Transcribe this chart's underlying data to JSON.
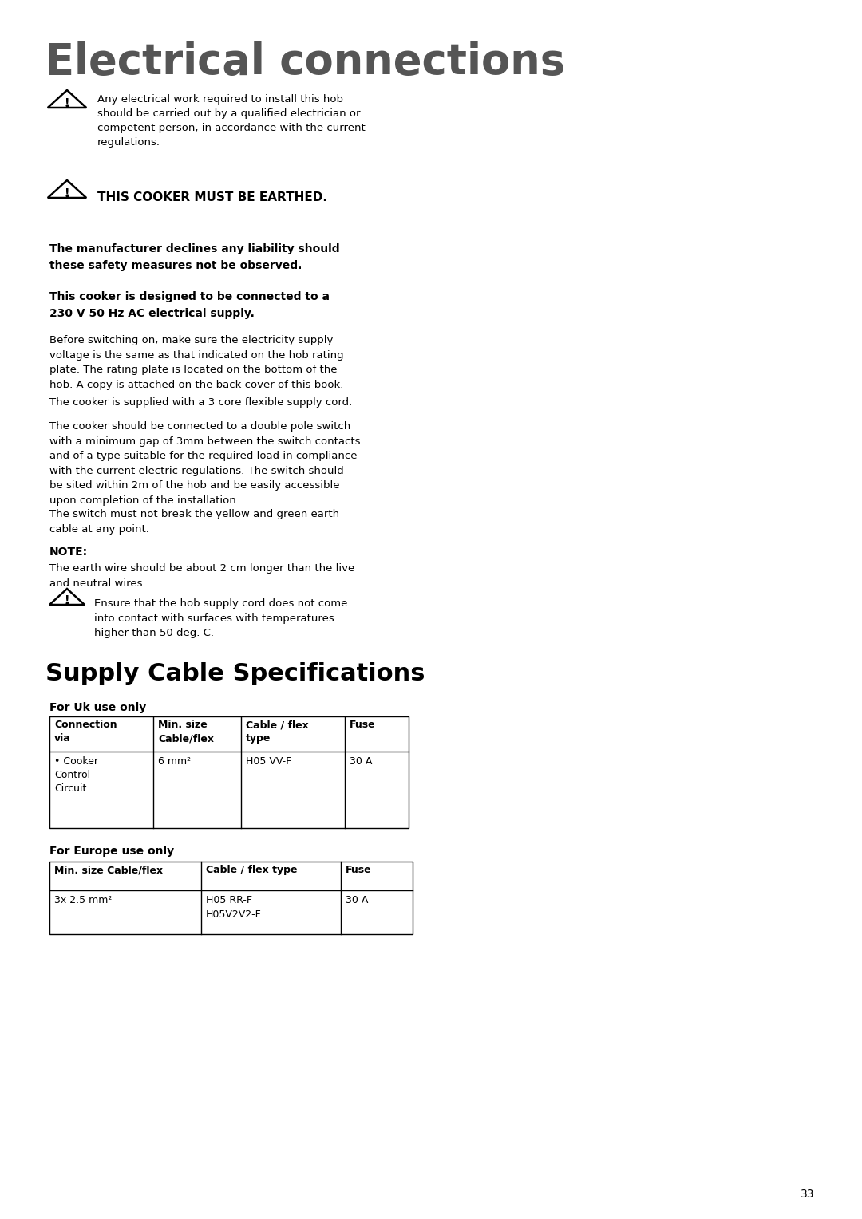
{
  "title": "Electrical connections",
  "title_color": "#555555",
  "bg_color": "#ffffff",
  "text_color": "#000000",
  "page_number": "33",
  "warning1_text": "Any electrical work required to install this hob\nshould be carried out by a qualified electrician or\ncompetent person, in accordance with the current\nregulations.",
  "warning2_text": "THIS COOKER MUST BE EARTHED.",
  "bold1_text": "The manufacturer declines any liability should\nthese safety measures not be observed.",
  "bold2_text": "This cooker is designed to be connected to a\n230 V 50 Hz AC electrical supply.",
  "para1": "Before switching on, make sure the electricity supply\nvoltage is the same as that indicated on the hob rating\nplate. The rating plate is located on the bottom of the\nhob. A copy is attached on the back cover of this book.",
  "para2": "The cooker is supplied with a 3 core flexible supply cord.",
  "para3": "The cooker should be connected to a double pole switch\nwith a minimum gap of 3mm between the switch contacts\nand of a type suitable for the required load in compliance\nwith the current electric regulations. The switch should\nbe sited within 2m of the hob and be easily accessible\nupon completion of the installation.",
  "para4": "The switch must not break the yellow and green earth\ncable at any point.",
  "note_label": "NOTE:",
  "note_text": "The earth wire should be about 2 cm longer than the live\nand neutral wires.",
  "warning3_text": "Ensure that the hob supply cord does not come\ninto contact with surfaces with temperatures\nhigher than 50 deg. C.",
  "section2_title": "Supply Cable Specifications",
  "uk_label": "For Uk use only",
  "uk_headers": [
    "Connection\nvia",
    "Min. size\nCable/flex",
    "Cable / flex\ntype",
    "Fuse"
  ],
  "uk_row": [
    "• Cooker\nControl\nCircuit",
    "6 mm²",
    "H05 VV-F",
    "30 A"
  ],
  "eu_label": "For Europe use only",
  "eu_headers": [
    "Min. size Cable/flex",
    "Cable / flex type",
    "Fuse"
  ],
  "eu_row": [
    "3x 2.5 mm²",
    "H05 RR-F\nH05V2V2-F",
    "30 A"
  ]
}
